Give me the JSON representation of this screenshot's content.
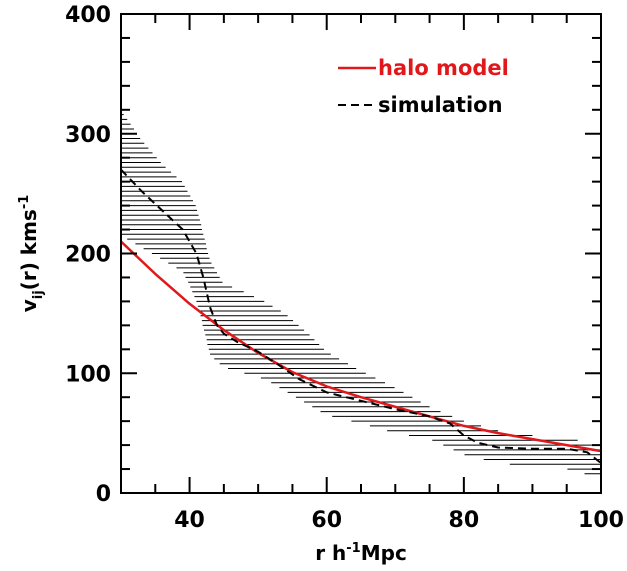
{
  "chart_data": {
    "type": "line",
    "xlabel": "r h",
    "xlabel_sup": "-1",
    "xlabel_suffix": "Mpc",
    "ylabel_main": "v",
    "ylabel_sub": "ij",
    "ylabel_mid": "(r) kms",
    "ylabel_sup": "-1",
    "xlim": [
      30,
      100
    ],
    "ylim": [
      0,
      400
    ],
    "xticks": [
      40,
      60,
      80,
      100
    ],
    "yticks": [
      0,
      100,
      200,
      300,
      400
    ],
    "grid": false,
    "legend_position": "top-right",
    "colors": {
      "halo_model": "#e0181b",
      "simulation": "#000000",
      "band": "#000000"
    },
    "series": [
      {
        "name": "halo model",
        "style": "solid",
        "x": [
          30,
          35,
          40,
          45,
          50,
          55,
          60,
          65,
          70,
          75,
          80,
          85,
          90,
          95,
          100
        ],
        "y": [
          210,
          183,
          158,
          136,
          117,
          101,
          89,
          80,
          72,
          64,
          56,
          50,
          45,
          40,
          35
        ]
      },
      {
        "name": "simulation",
        "style": "dashed",
        "x": [
          30,
          33,
          36,
          39,
          41,
          42,
          43,
          44,
          45,
          47,
          50,
          53,
          56,
          60,
          65,
          70,
          75,
          78,
          80,
          82,
          85,
          90,
          95,
          98,
          100
        ],
        "y": [
          270,
          252,
          236,
          220,
          200,
          180,
          155,
          140,
          133,
          126,
          118,
          107,
          95,
          84,
          77,
          70,
          64,
          58,
          48,
          42,
          38,
          37,
          37,
          34,
          25
        ]
      }
    ],
    "band": {
      "x": [
        30,
        33,
        36,
        39,
        41,
        43,
        45,
        48,
        51,
        54,
        57,
        60,
        65,
        70,
        75,
        80,
        85,
        90,
        95,
        100
      ],
      "upper": [
        320,
        295,
        275,
        260,
        240,
        195,
        175,
        168,
        160,
        150,
        135,
        118,
        102,
        88,
        72,
        60,
        52,
        48,
        45,
        42
      ],
      "lower": [
        215,
        205,
        195,
        185,
        160,
        115,
        105,
        100,
        95,
        85,
        75,
        65,
        58,
        50,
        45,
        32,
        25,
        22,
        20,
        12
      ]
    }
  }
}
